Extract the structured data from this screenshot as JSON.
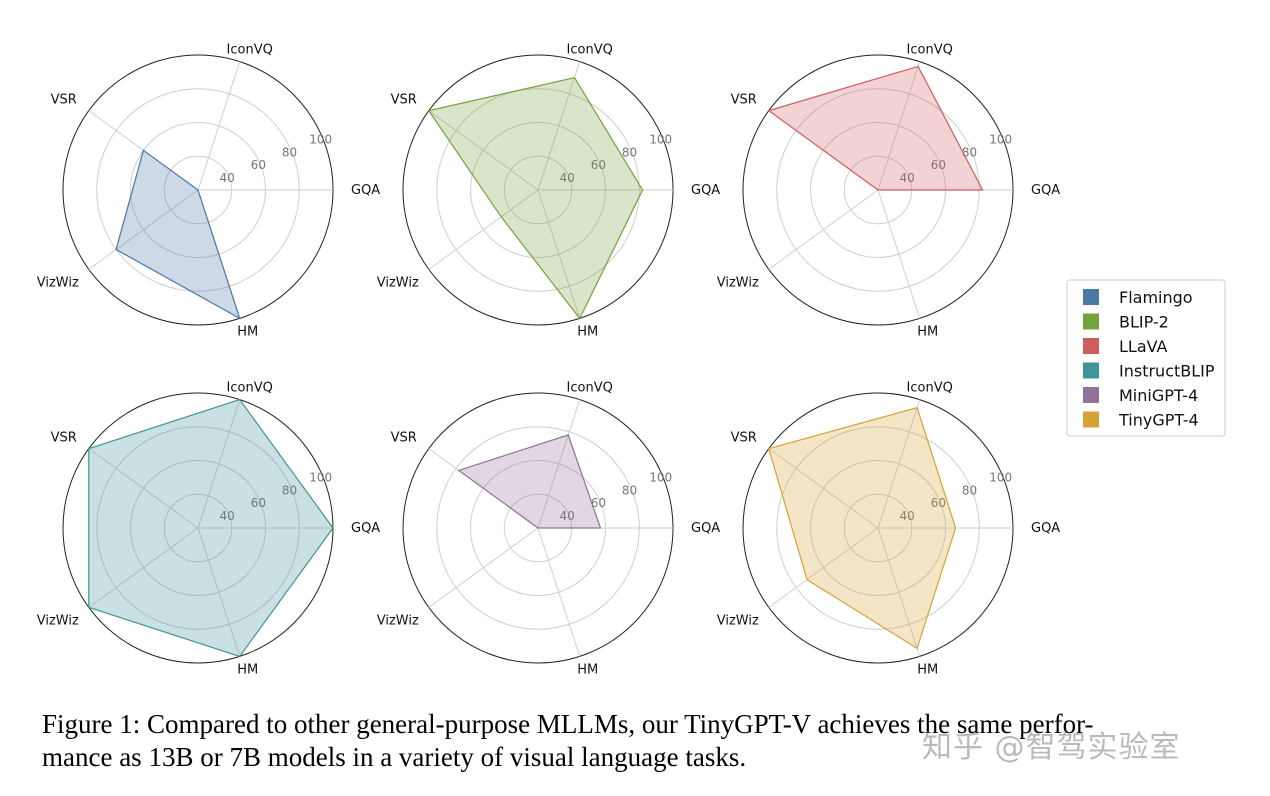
{
  "chart_data": {
    "type": "radar",
    "axes": [
      "GQA",
      "IconVQ",
      "VSR",
      "VizWiz",
      "HM"
    ],
    "radial_ticks": [
      "40",
      "60",
      "80",
      "100"
    ],
    "r_range": [
      20,
      100
    ],
    "charts": [
      {
        "name": "Flamingo",
        "color": "#4a78a4",
        "values": [
          0,
          0,
          60,
          80,
          100
        ]
      },
      {
        "name": "BLIP-2",
        "color": "#73a33c",
        "values": [
          82,
          90,
          100,
          47,
          100
        ]
      },
      {
        "name": "LLaVA",
        "color": "#d05d5d",
        "values": [
          82,
          97,
          100,
          0,
          0
        ]
      },
      {
        "name": "InstructBLIP",
        "color": "#3e9496",
        "values": [
          100,
          100,
          100,
          100,
          100
        ]
      },
      {
        "name": "MiniGPT-4",
        "color": "#8f7199",
        "values": [
          57,
          78,
          78,
          0,
          0
        ]
      },
      {
        "name": "TinyGPT-4",
        "color": "#d7a235",
        "values": [
          66,
          95,
          100,
          72,
          95
        ]
      }
    ]
  },
  "legend": [
    "Flamingo",
    "BLIP-2",
    "LLaVA",
    "InstructBLIP",
    "MiniGPT-4",
    "TinyGPT-4"
  ],
  "caption": {
    "line1": "Figure 1: Compared to other general-purpose MLLMs, our TinyGPT-V achieves the same perfor-",
    "line2": "mance as 13B or 7B models in a variety of visual language tasks."
  },
  "watermark": "知乎 @智驾实验室"
}
